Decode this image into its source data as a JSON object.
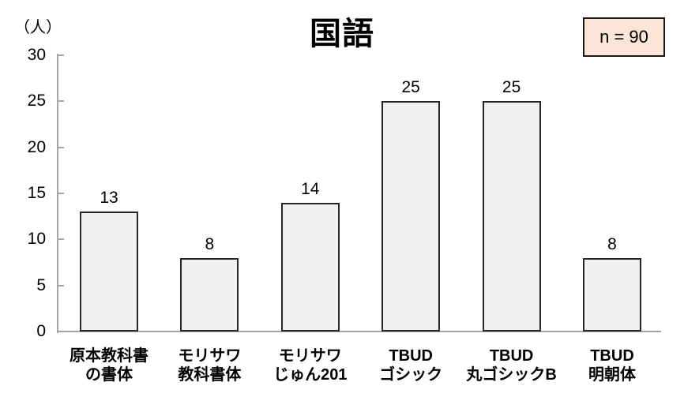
{
  "chart_data": {
    "type": "bar",
    "title": "国語",
    "ylabel": "（人）",
    "annotation": "n = 90",
    "categories": [
      "原本教科書\nの書体",
      "モリサワ\n教科書体",
      "モリサワ\nじゅん201",
      "TBUD\nゴシック",
      "TBUD\n丸ゴシックB",
      "TBUD\n明朝体"
    ],
    "values": [
      13,
      8,
      14,
      25,
      25,
      8
    ],
    "xlabel": "",
    "ylim": [
      0,
      30
    ],
    "yticks": [
      0,
      5,
      10,
      15,
      20,
      25,
      30
    ],
    "grid": false,
    "legend": false,
    "data_labels": true,
    "colors": {
      "bar_fill": "#f0f0f0",
      "bar_border": "#262626",
      "axis": "#a6a6a6",
      "text": "#000000",
      "annotation_fill": "#fce4d6",
      "annotation_border": "#1a1a1a"
    }
  }
}
